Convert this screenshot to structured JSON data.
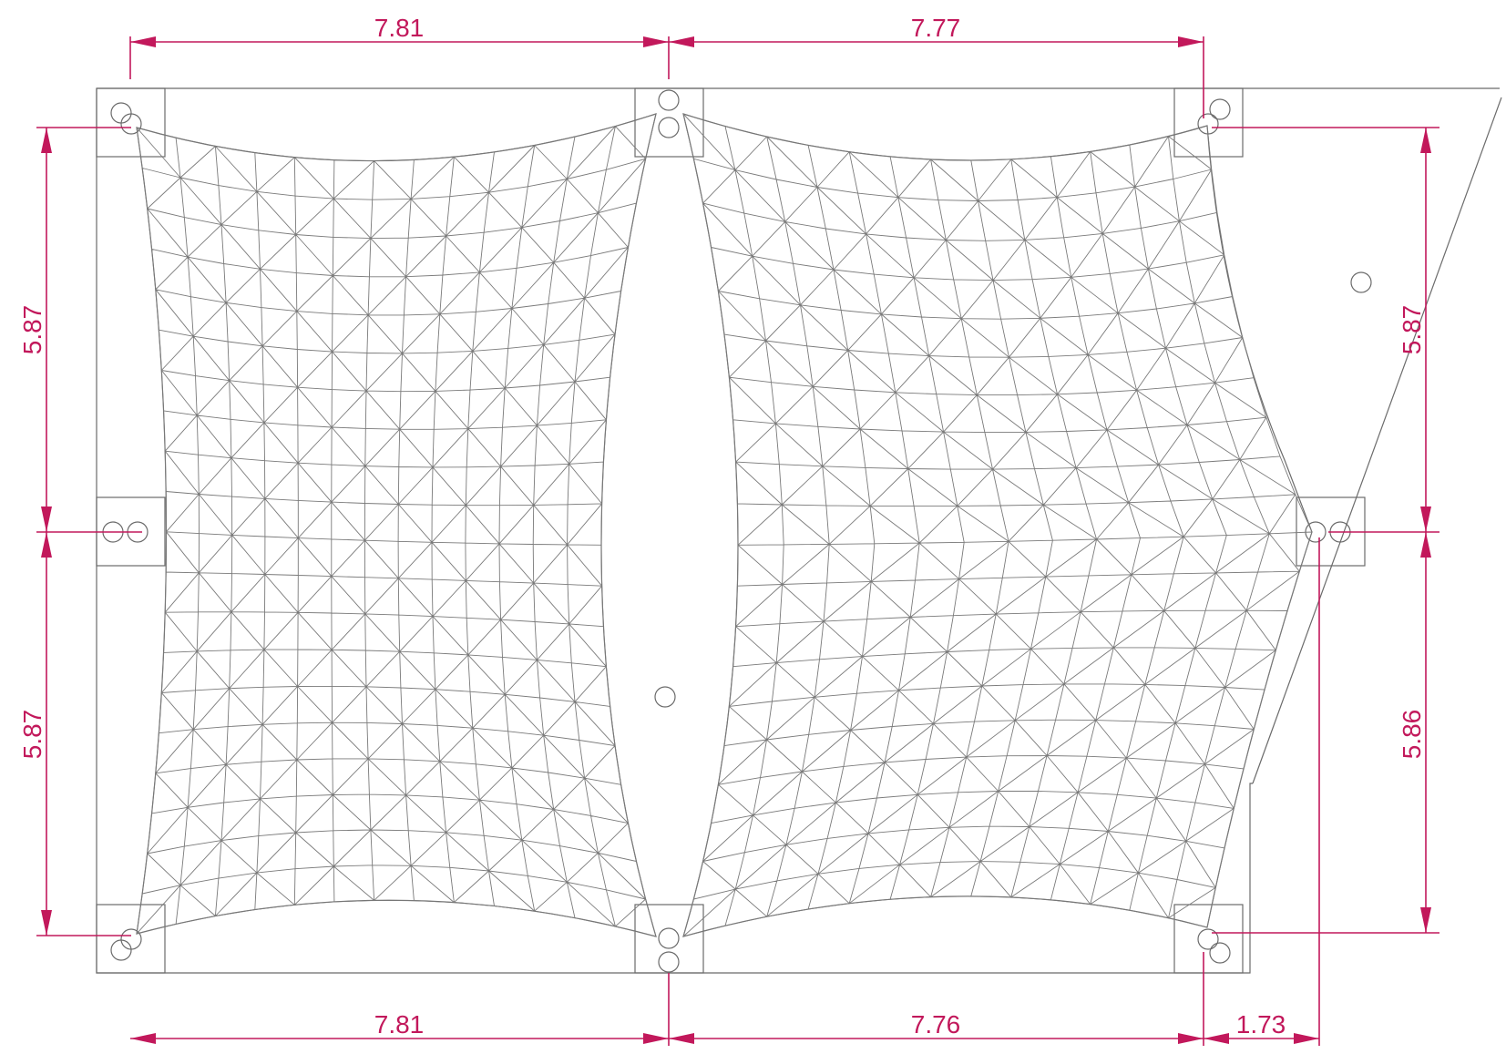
{
  "colors": {
    "dimension": "#c2185b",
    "geometry": "#6b6b6b",
    "background": "#ffffff"
  },
  "dimensions": {
    "top_left": "7.81",
    "top_right": "7.77",
    "bottom_left": "7.81",
    "bottom_right": "7.76",
    "bottom_extra": "1.73",
    "left_upper": "5.87",
    "left_lower": "5.87",
    "right_upper": "5.87",
    "right_lower": "5.86"
  }
}
